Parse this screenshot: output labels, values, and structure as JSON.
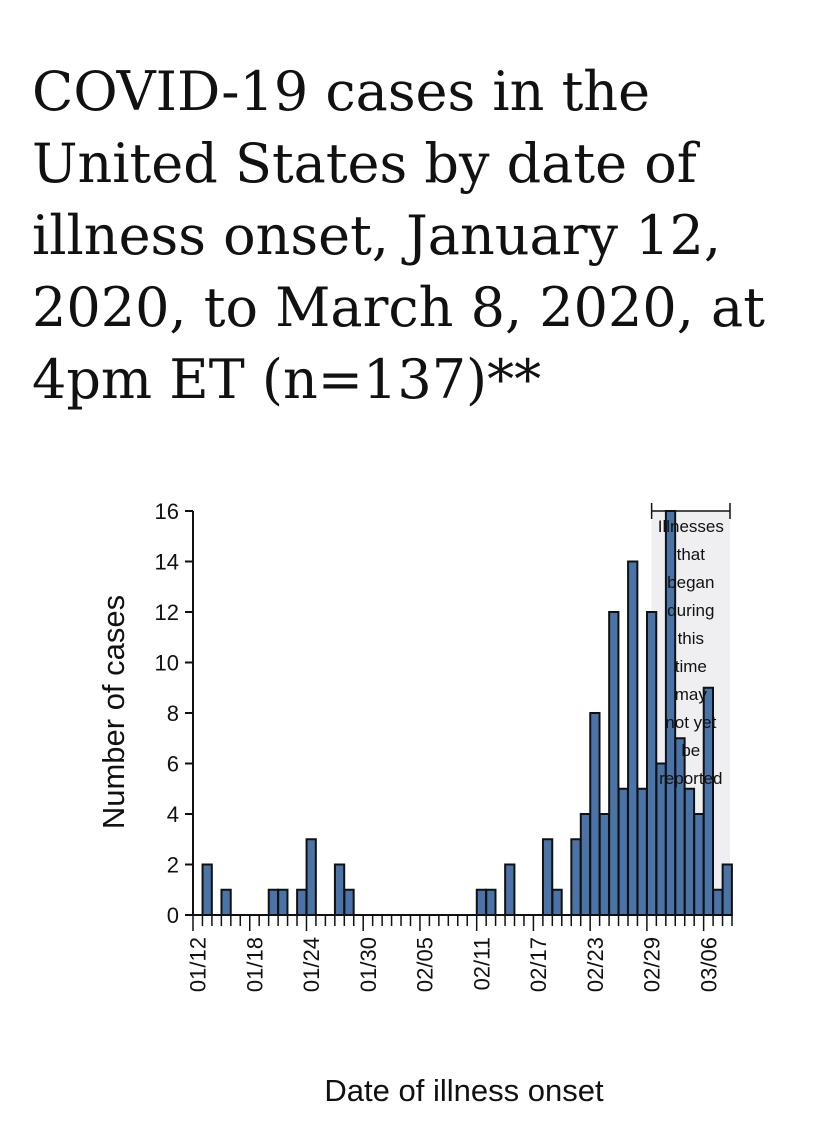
{
  "title": "COVID-19 cases in the United States by date of illness onset, January 12, 2020, to March 8, 2020, at 4pm ET (n=137)**",
  "chart_data": {
    "type": "bar",
    "xlabel": "Date of illness onset",
    "ylabel": "Number of cases",
    "ylim": [
      0,
      16
    ],
    "yticks": [
      0,
      2,
      4,
      6,
      8,
      10,
      12,
      14,
      16
    ],
    "xtick_labels": [
      "01/12",
      "01/18",
      "01/24",
      "01/30",
      "02/05",
      "02/11",
      "02/17",
      "02/23",
      "02/29",
      "03/06"
    ],
    "categories": [
      "01/12",
      "01/13",
      "01/14",
      "01/15",
      "01/16",
      "01/17",
      "01/18",
      "01/19",
      "01/20",
      "01/21",
      "01/22",
      "01/23",
      "01/24",
      "01/25",
      "01/26",
      "01/27",
      "01/28",
      "01/29",
      "01/30",
      "01/31",
      "02/01",
      "02/02",
      "02/03",
      "02/04",
      "02/05",
      "02/06",
      "02/07",
      "02/08",
      "02/09",
      "02/10",
      "02/11",
      "02/12",
      "02/13",
      "02/14",
      "02/15",
      "02/16",
      "02/17",
      "02/18",
      "02/19",
      "02/20",
      "02/21",
      "02/22",
      "02/23",
      "02/24",
      "02/25",
      "02/26",
      "02/27",
      "02/28",
      "02/29",
      "03/01",
      "03/02",
      "03/03",
      "03/04",
      "03/05",
      "03/06",
      "03/07",
      "03/08"
    ],
    "values": [
      0,
      2,
      0,
      1,
      0,
      0,
      0,
      0,
      1,
      1,
      0,
      1,
      3,
      0,
      0,
      2,
      1,
      0,
      0,
      0,
      0,
      0,
      0,
      0,
      0,
      0,
      0,
      0,
      0,
      0,
      1,
      1,
      0,
      2,
      0,
      0,
      0,
      3,
      1,
      0,
      3,
      4,
      8,
      4,
      12,
      5,
      14,
      5,
      12,
      6,
      16,
      7,
      5,
      4,
      9,
      1,
      2
    ],
    "bar_color": "#4a74a8",
    "annotation": "Illnesses that began during this time may not yet be reported",
    "annotation_lines": [
      "Illnesses",
      "that",
      "began",
      "during",
      "this",
      "time",
      "may",
      "not yet",
      "be",
      "reported"
    ],
    "annotation_range": [
      "02/29",
      "03/08"
    ],
    "annotation_shade": "#efeff1",
    "grid": false
  }
}
